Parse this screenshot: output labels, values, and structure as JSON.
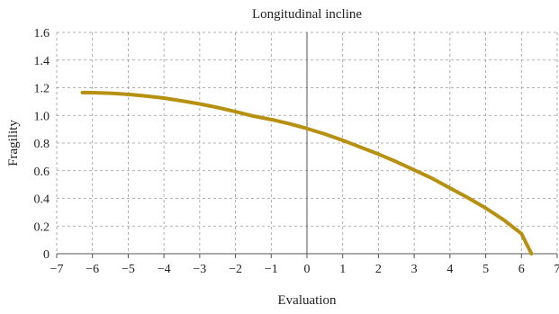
{
  "chart_data": {
    "type": "line",
    "title": "Longitudinal incline",
    "xlabel": "Evaluation",
    "ylabel": "Fragility",
    "xlim": [
      -7,
      7
    ],
    "ylim": [
      0,
      1.6
    ],
    "xticks": [
      -7,
      -6,
      -5,
      -4,
      -3,
      -2,
      -1,
      0,
      1,
      2,
      3,
      4,
      5,
      6,
      7
    ],
    "xtick_labels": [
      "−7",
      "−6",
      "−5",
      "−4",
      "−3",
      "−2",
      "−1",
      "0",
      "1",
      "2",
      "3",
      "4",
      "5",
      "6",
      "7"
    ],
    "yticks": [
      0,
      0.2,
      0.4,
      0.6,
      0.8,
      1.0,
      1.2,
      1.4,
      1.6
    ],
    "ytick_labels": [
      "0",
      "0.2",
      "0.4",
      "0.6",
      "0.8",
      "1.0",
      "1.2",
      "1.4",
      "1.6"
    ],
    "grid": true,
    "series": [
      {
        "color": "#B8900F",
        "x": [
          -6.28,
          -6.0,
          -5.5,
          -5.0,
          -4.5,
          -4.0,
          -3.5,
          -3.0,
          -2.5,
          -2.0,
          -1.5,
          -1.0,
          -0.5,
          0.0,
          0.5,
          1.0,
          1.5,
          2.0,
          2.5,
          3.0,
          3.5,
          4.0,
          4.5,
          5.0,
          5.5,
          6.0,
          6.28
        ],
        "y": [
          1.165,
          1.164,
          1.16,
          1.152,
          1.14,
          1.125,
          1.105,
          1.083,
          1.057,
          1.027,
          0.995,
          0.97,
          0.94,
          0.905,
          0.865,
          0.82,
          0.77,
          0.72,
          0.665,
          0.605,
          0.545,
          0.475,
          0.405,
          0.33,
          0.245,
          0.145,
          0.0
        ]
      }
    ]
  }
}
